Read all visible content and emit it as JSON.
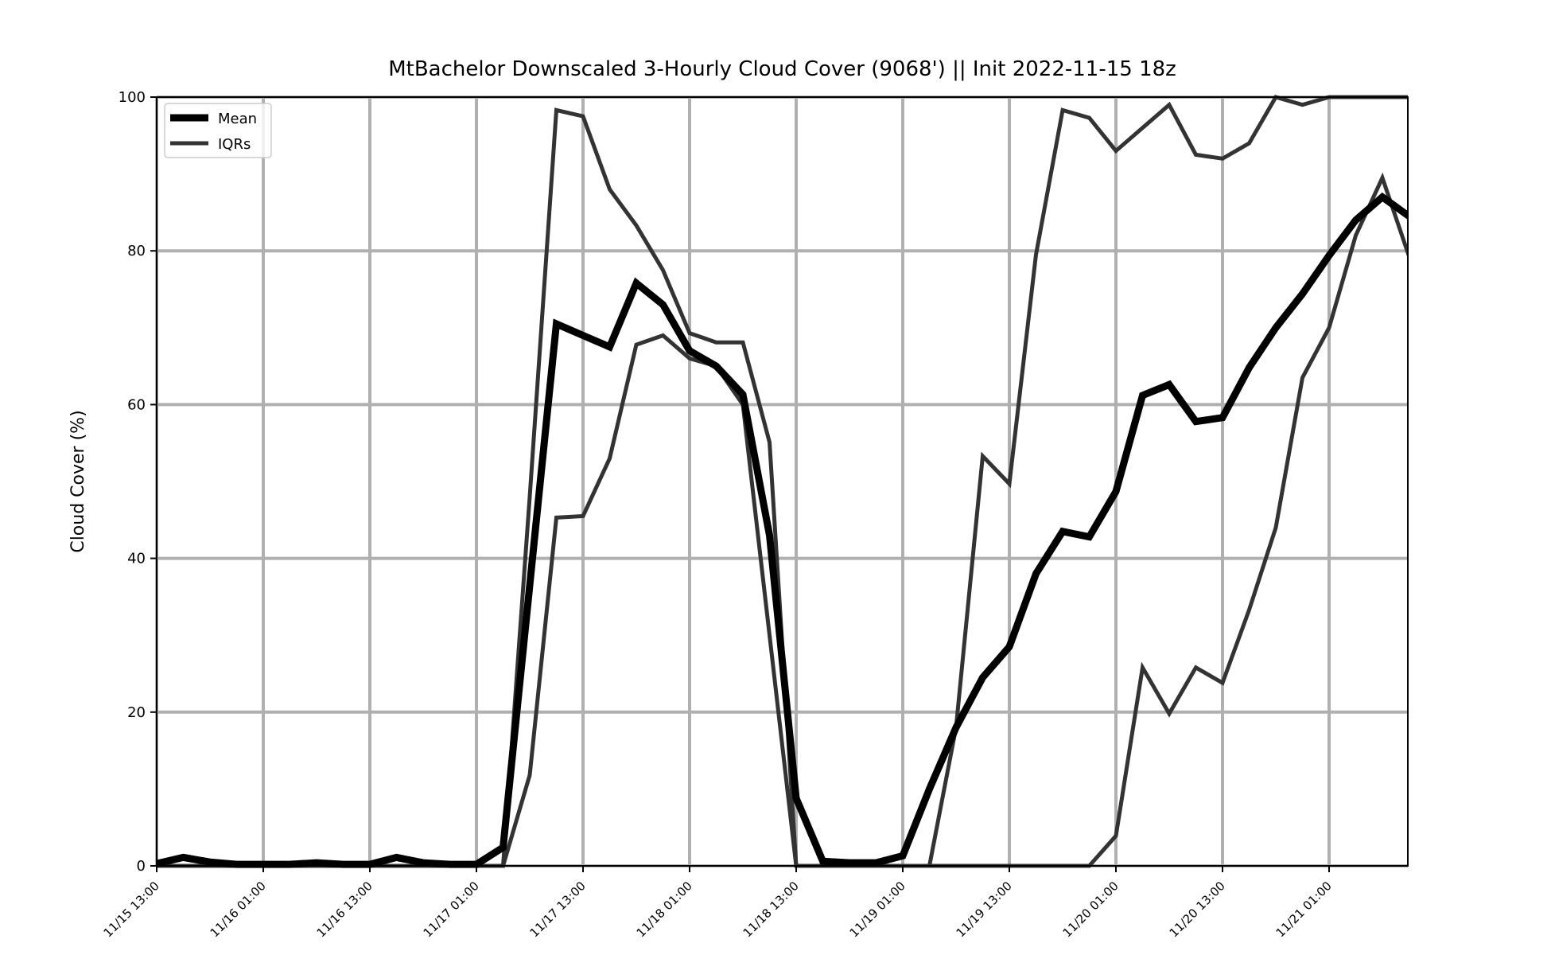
{
  "chart_data": {
    "type": "line",
    "title": "MtBachelor Downscaled 3-Hourly Cloud Cover (9068') || Init 2022-11-15 18z",
    "xlabel": "",
    "ylabel": "Cloud Cover (%)",
    "ylim": [
      0,
      100
    ],
    "yticks": [
      0,
      20,
      40,
      60,
      80,
      100
    ],
    "xticks": [
      "11/15 13:00",
      "11/16 01:00",
      "11/16 13:00",
      "11/17 01:00",
      "11/17 13:00",
      "11/18 01:00",
      "11/18 13:00",
      "11/19 01:00",
      "11/19 13:00",
      "11/20 01:00",
      "11/20 13:00",
      "11/21 01:00"
    ],
    "x_start": "11/15 13:00",
    "x_step_hours": 3,
    "grid": true,
    "legend_position": "top-left",
    "legend": [
      "Mean",
      "IQRs"
    ],
    "series": [
      {
        "name": "Mean",
        "color": "#000000",
        "values": [
          0.3,
          1.1,
          0.5,
          0.2,
          0.2,
          0.2,
          0.4,
          0.2,
          0.2,
          1.1,
          0.4,
          0.2,
          0.2,
          2.4,
          36.5,
          70.5,
          69.0,
          67.5,
          75.8,
          73.0,
          67.0,
          65.0,
          61.3,
          43.0,
          8.8,
          0.6,
          0.4,
          0.4,
          1.3,
          10.0,
          18.0,
          24.5,
          28.5,
          38.0,
          43.5,
          42.8,
          48.7,
          61.2,
          62.6,
          57.8,
          58.3,
          64.8,
          70.0,
          74.4,
          79.4,
          84.0,
          87.0,
          84.5
        ]
      },
      {
        "name": "IQRs",
        "color": "#333333",
        "values": [
          0,
          0,
          0,
          0,
          0,
          0,
          0,
          0,
          0,
          0,
          0,
          0,
          0,
          0,
          11.8,
          45.3,
          45.5,
          53.0,
          67.8,
          69.0,
          66.0,
          65.0,
          60.0,
          30.0,
          0,
          0,
          0,
          0,
          0,
          0,
          0,
          0,
          0,
          0,
          0,
          0,
          3.9,
          25.8,
          19.8,
          25.8,
          23.8,
          33.3,
          44.0,
          63.5,
          70.0,
          82.0,
          89.5,
          79.3
        ]
      },
      {
        "name": "",
        "color": "#333333",
        "values": [
          0,
          0,
          0,
          0,
          0,
          0,
          0,
          0,
          0,
          0,
          0,
          0,
          0,
          0,
          48.0,
          98.3,
          97.5,
          88.0,
          83.3,
          77.5,
          69.3,
          68.1,
          68.1,
          55.1,
          0,
          0,
          0,
          0,
          0,
          0,
          18.0,
          53.3,
          49.7,
          79.5,
          98.3,
          97.3,
          93.0,
          96.0,
          99.0,
          92.5,
          92.0,
          94.0,
          100,
          99.0,
          100,
          100,
          100,
          100
        ]
      }
    ]
  }
}
